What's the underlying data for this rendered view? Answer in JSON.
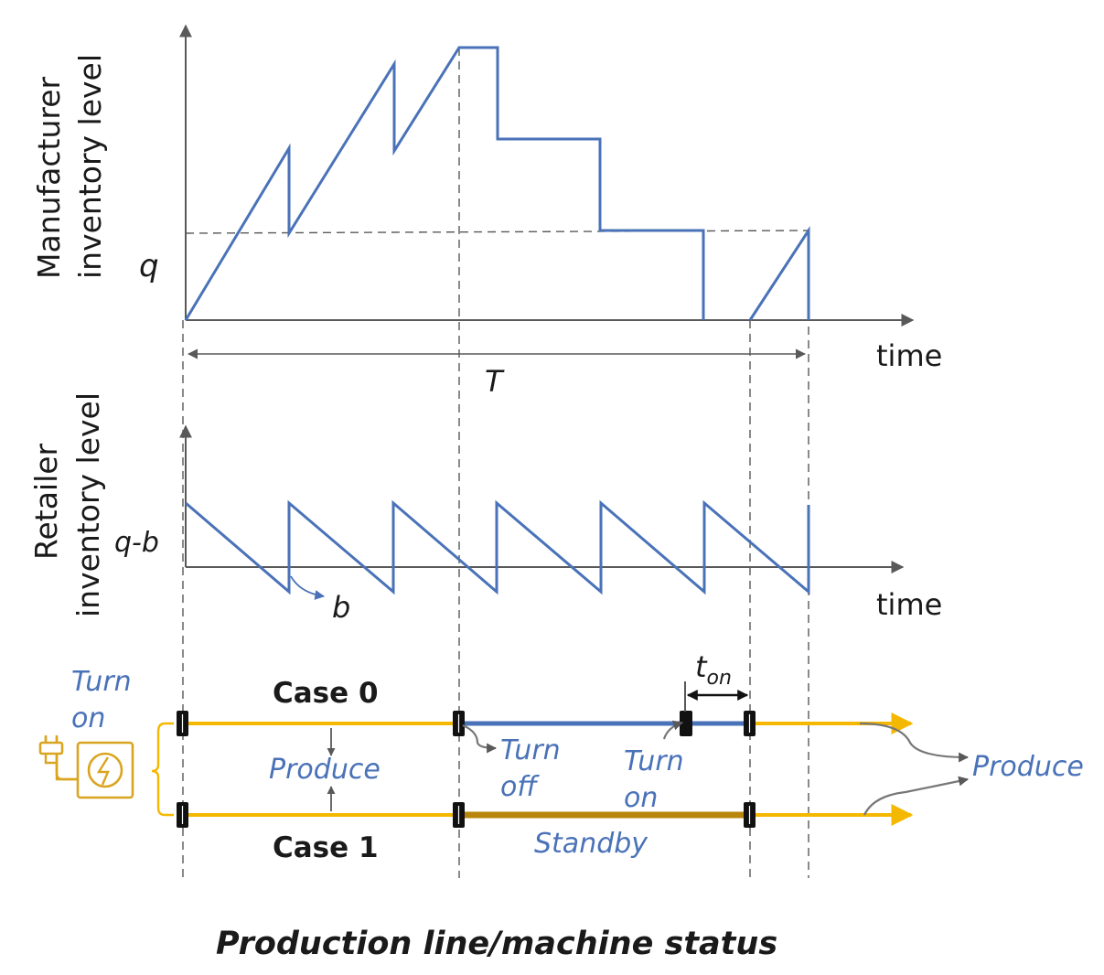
{
  "top_panel": {
    "ylabel_line1": "Manufacturer",
    "ylabel_line2": "inventory level",
    "xlabel": "time",
    "q_label": "q",
    "period_label": "T"
  },
  "middle_panel": {
    "ylabel_line1": "Retailer",
    "ylabel_line2": "inventory level",
    "xlabel": "time",
    "qb_label": "q-b",
    "b_label": "b"
  },
  "bottom_panel": {
    "turn_on_start_line1": "Turn",
    "turn_on_start_line2": "on",
    "case0": "Case 0",
    "case1": "Case 1",
    "produce_middle": "Produce",
    "turn_off_line1": "Turn",
    "turn_off_line2": "off",
    "turn_on_mid_line1": "Turn",
    "turn_on_mid_line2": "on",
    "t_on_main": "t",
    "t_on_sub": "on",
    "standby": "Standby",
    "produce_right": "Produce",
    "footer_title": "Production line/machine status"
  },
  "colors": {
    "series_blue": "#4a72b8",
    "axis_gray": "#595959",
    "produce_yellow": "#f5b800",
    "standby_dark_yellow": "#b8860b",
    "marker_black": "#111111",
    "plug_gold": "#d9a520"
  }
}
